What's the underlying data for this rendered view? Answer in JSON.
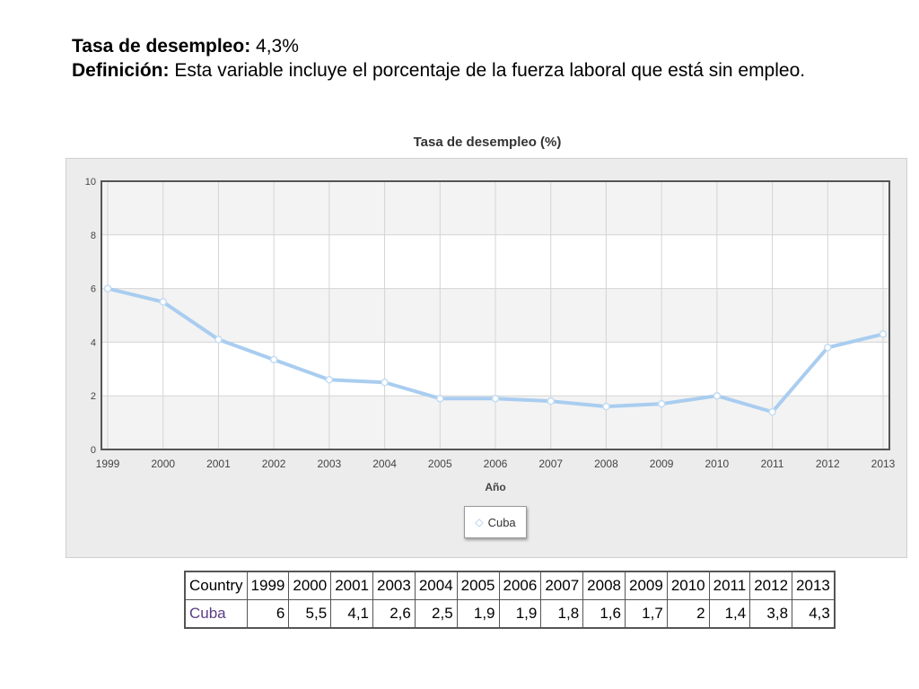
{
  "header": {
    "rate_label": "Tasa de desempleo:",
    "rate_value": "4,3%",
    "definition_label": "Definición:",
    "definition_text": "Esta variable incluye el porcentaje de la fuerza laboral que está sin empleo."
  },
  "chart_data": {
    "type": "line",
    "title": "Tasa de desempleo (%)",
    "xlabel": "Año",
    "ylabel": "",
    "categories": [
      "1999",
      "2000",
      "2001",
      "2002",
      "2003",
      "2004",
      "2005",
      "2006",
      "2007",
      "2008",
      "2009",
      "2010",
      "2011",
      "2012",
      "2013"
    ],
    "series": [
      {
        "name": "Cuba",
        "values": [
          6,
          5.5,
          4.1,
          3.35,
          2.6,
          2.5,
          1.9,
          1.9,
          1.8,
          1.6,
          1.7,
          2,
          1.4,
          3.8,
          4.3
        ]
      }
    ],
    "ylim": [
      0,
      10
    ],
    "yticks": [
      "0",
      "2",
      "4",
      "6",
      "8",
      "10"
    ],
    "grid": true,
    "legend_position": "bottom-center",
    "line_color": "#a9cdf0"
  },
  "table": {
    "headers": [
      "Country",
      "1999",
      "2000",
      "2001",
      "2003",
      "2004",
      "2005",
      "2006",
      "2007",
      "2008",
      "2009",
      "2010",
      "2011",
      "2012",
      "2013"
    ],
    "rows": [
      [
        "Cuba",
        "6",
        "5,5",
        "4,1",
        "2,6",
        "2,5",
        "1,9",
        "1,9",
        "1,8",
        "1,6",
        "1,7",
        "2",
        "1,4",
        "3,8",
        "4,3"
      ]
    ]
  }
}
